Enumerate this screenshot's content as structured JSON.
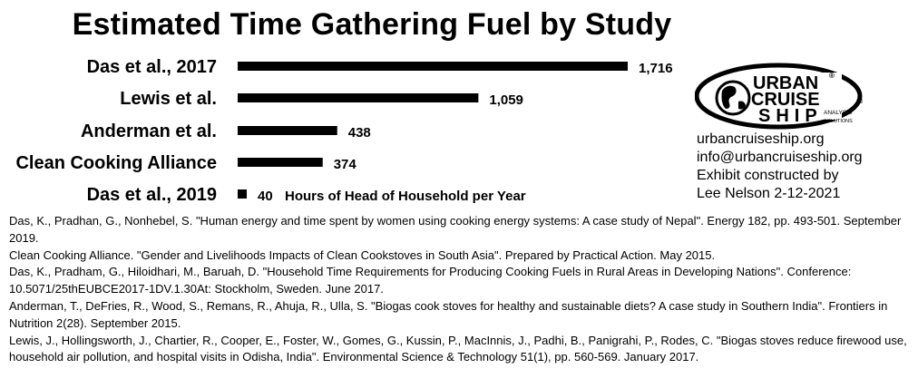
{
  "chart_data": {
    "type": "bar",
    "orientation": "horizontal",
    "title": "Estimated Time Gathering Fuel by Study",
    "categories": [
      "Das et al., 2017",
      "Lewis et al.",
      "Anderman et al.",
      "Clean Cooking Alliance",
      "Das et al., 2019"
    ],
    "values": [
      1716,
      1059,
      438,
      374,
      40
    ],
    "value_labels": [
      "1,716",
      "1,059",
      "438",
      "374",
      "40"
    ],
    "annotation": "Hours of Head of Household per Year",
    "bar_color": "#000000",
    "grid": false,
    "legend": "none"
  },
  "logo": {
    "line1": "URBAN",
    "line2": "CRUISE",
    "line3": "SHIP",
    "registered": "®",
    "tagline1": "ANALYSIS",
    "tagline2": "SOLUTIONS"
  },
  "contact": {
    "website": "urbancruiseship.org",
    "email": "info@urbancruiseship.org",
    "credit_line1": "Exhibit constructed by",
    "credit_line2": "Lee Nelson 2-12-2021"
  },
  "references": [
    "Das, K., Pradhan, G., Nonhebel, S. \"Human energy and time spent by women using cooking energy systems: A case study of Nepal\". Energy 182, pp. 493-501. September 2019.",
    "Clean Cooking Alliance. \"Gender and Livelihoods Impacts of Clean Cookstoves in South Asia\". Prepared by Practical Action. May 2015.",
    "Das, K., Pradham, G., Hiloidhari, M., Baruah, D. \"Household Time Requirements for Producing Cooking Fuels in Rural Areas in Developing Nations\". Conference: 10.5071/25thEUBCE2017-1DV.1.30At: Stockholm, Sweden. June 2017.",
    "Anderman, T., DeFries, R., Wood, S., Remans, R., Ahuja, R., Ulla, S. \"Biogas cook stoves for healthy and sustainable diets? A case study in Southern India\". Frontiers in Nutrition 2(28). September 2015.",
    "Lewis, J., Hollingsworth, J., Chartier, R., Cooper, E., Foster, W., Gomes, G., Kussin, P., MacInnis, J., Padhi, B., Panigrahi, P., Rodes, C. \"Biogas stoves reduce firewood use, household air pollution, and hospital visits in Odisha, India\". Environmental Science & Technology 51(1), pp. 560-569. January 2017."
  ]
}
